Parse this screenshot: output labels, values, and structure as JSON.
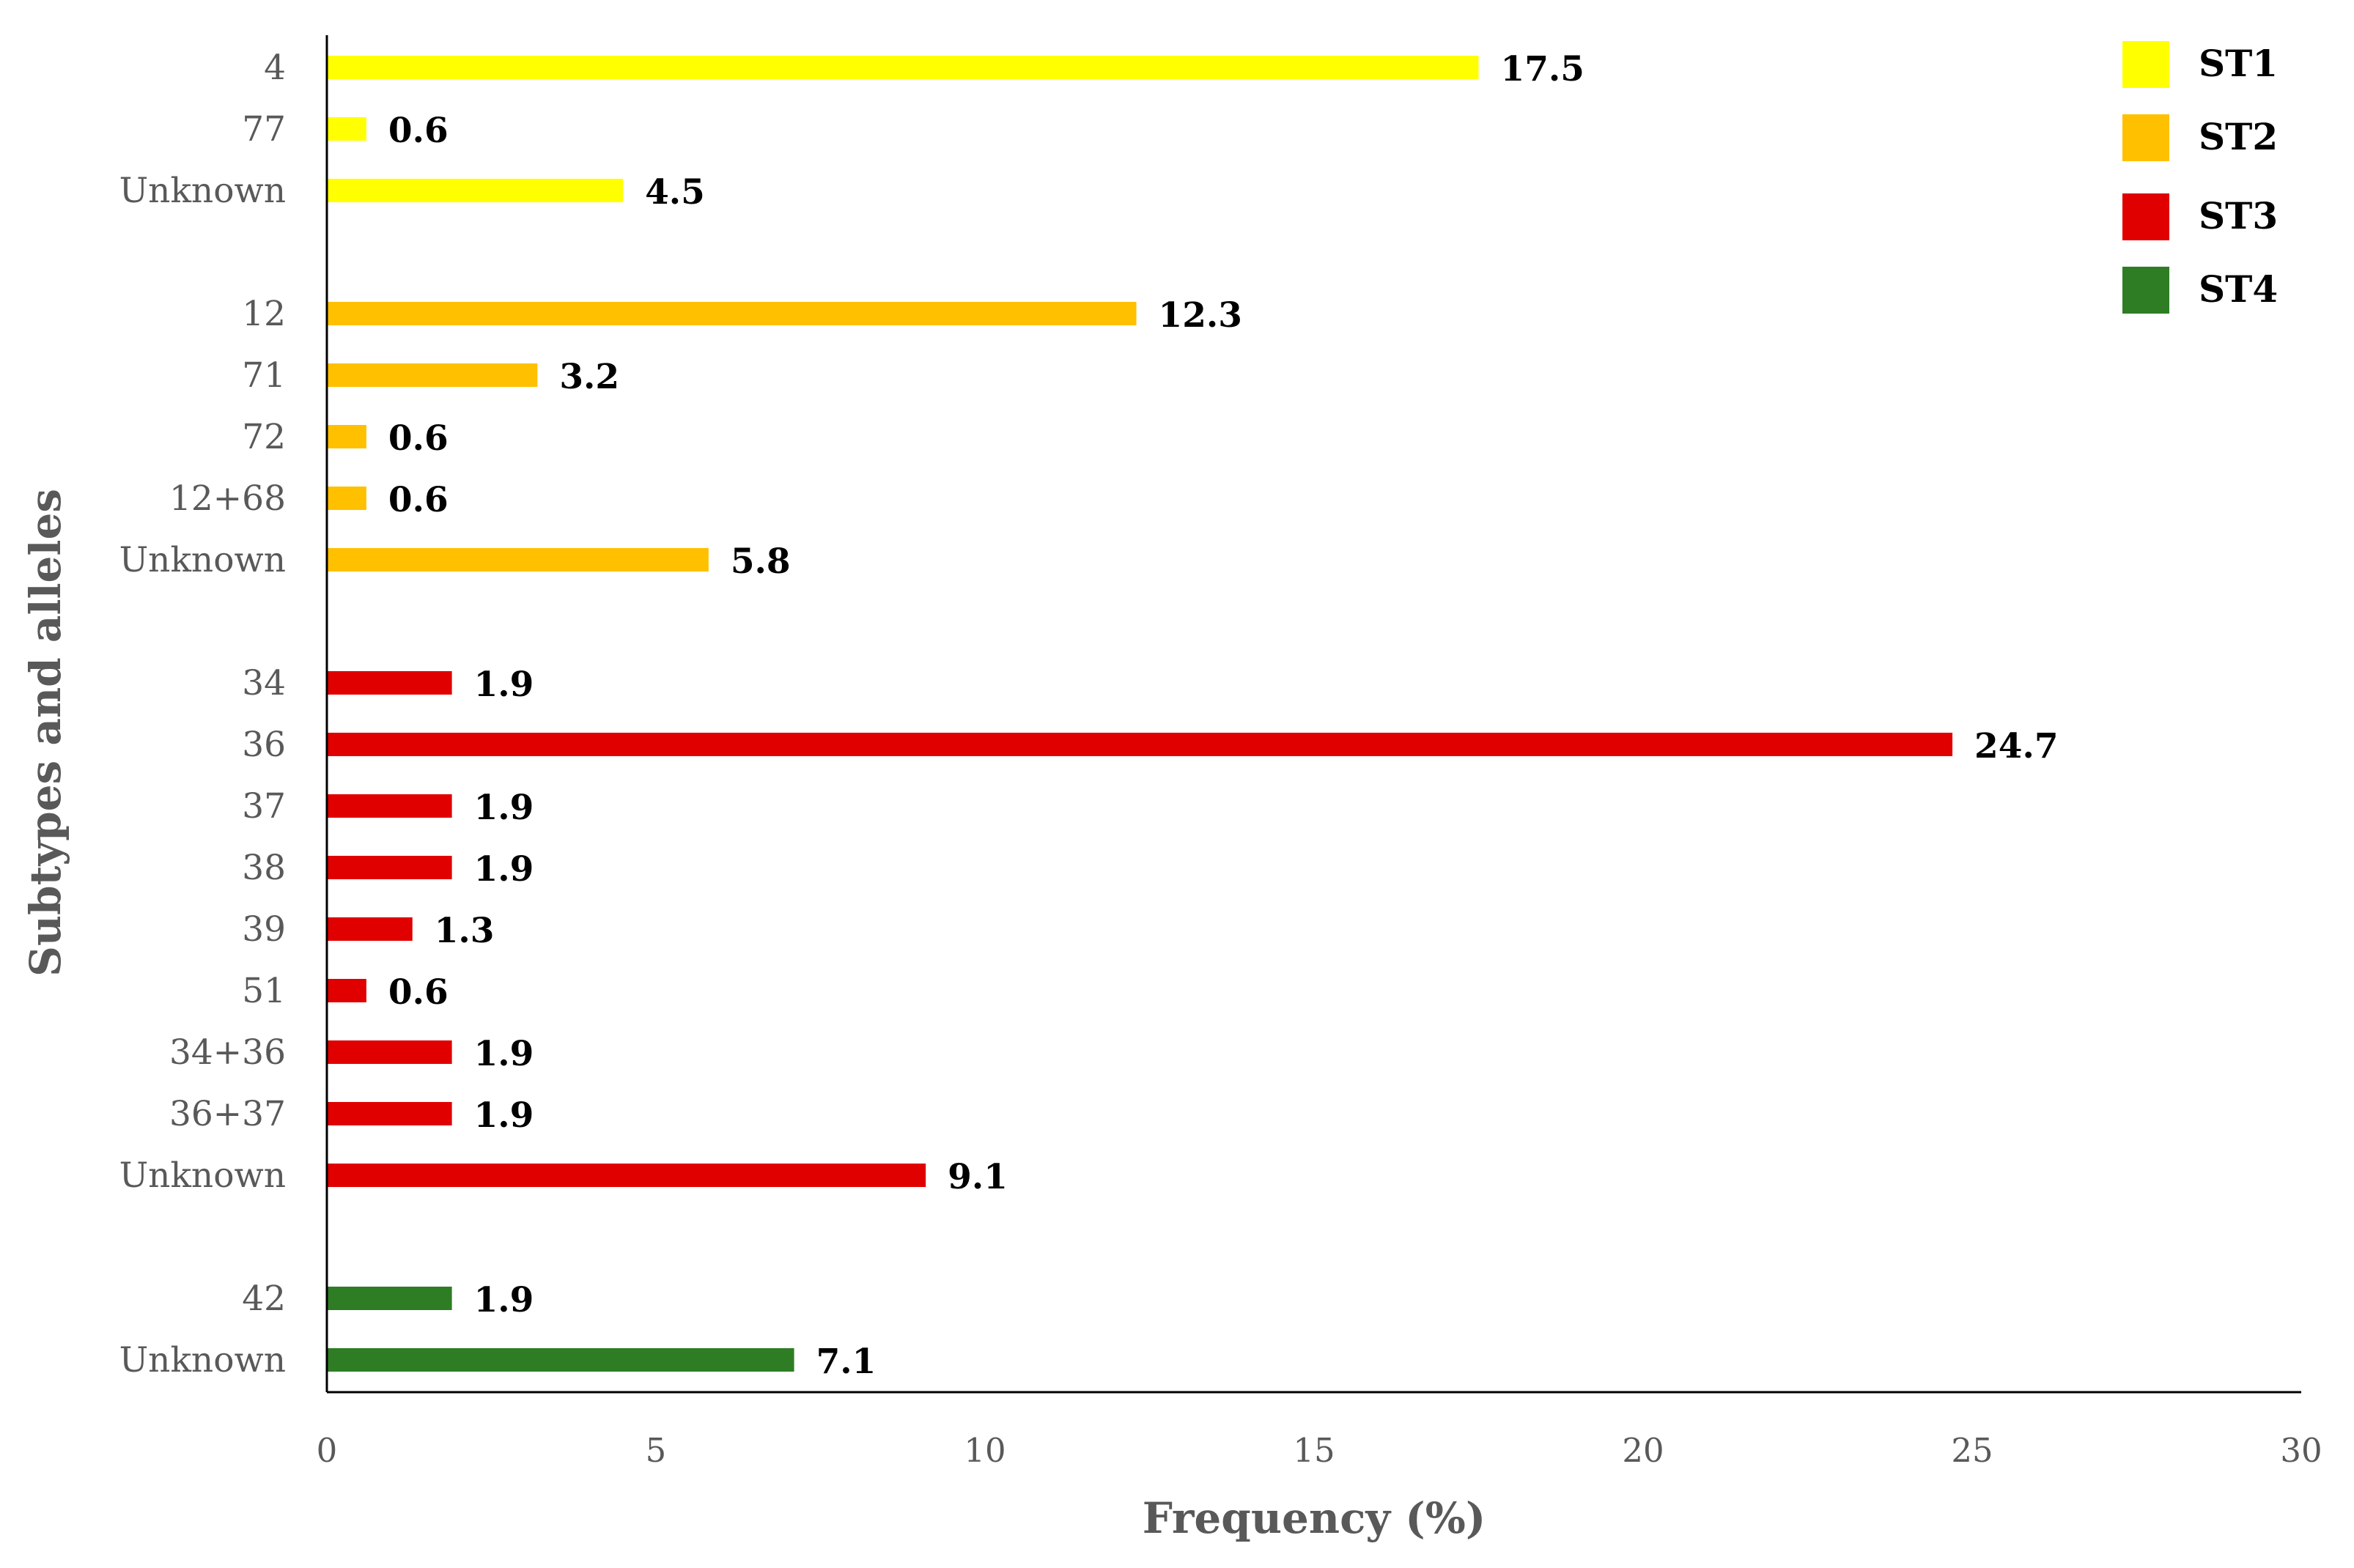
{
  "chart_data": {
    "type": "bar",
    "orientation": "horizontal",
    "xlabel": "Frequency (%)",
    "ylabel": "Subtypes and alleles",
    "xlim": [
      0,
      30
    ],
    "xticks": [
      "0",
      "5",
      "10",
      "15",
      "20",
      "25",
      "30"
    ],
    "grid": false,
    "legend_position": "top-right",
    "groups": [
      {
        "name": "ST1",
        "color": "#FFFF00",
        "categories": [
          "4",
          "77",
          "Unknown"
        ],
        "values": [
          17.5,
          0.6,
          4.5
        ],
        "labels": [
          "17.5",
          "0.6",
          "4.5"
        ]
      },
      {
        "name": "ST2",
        "color": "#FFC000",
        "categories": [
          "12",
          "71",
          "72",
          "12+68",
          "Unknown"
        ],
        "values": [
          12.3,
          3.2,
          0.6,
          0.6,
          5.8
        ],
        "labels": [
          "12.3",
          "3.2",
          "0.6",
          "0.6",
          "5.8"
        ]
      },
      {
        "name": "ST3",
        "color": "#E00000",
        "categories": [
          "34",
          "36",
          "37",
          "38",
          "39",
          "51",
          "34+36",
          "36+37",
          "Unknown"
        ],
        "values": [
          1.9,
          24.7,
          1.9,
          1.9,
          1.3,
          0.6,
          1.9,
          1.9,
          9.1
        ],
        "labels": [
          "1.9",
          "24.7",
          "1.9",
          "1.9",
          "1.3",
          "0.6",
          "1.9",
          "1.9",
          "9.1"
        ]
      },
      {
        "name": "ST4",
        "color": "#2E7D24",
        "categories": [
          "42",
          "Unknown"
        ],
        "values": [
          1.9,
          7.1
        ],
        "labels": [
          "1.9",
          "7.1"
        ]
      }
    ]
  }
}
